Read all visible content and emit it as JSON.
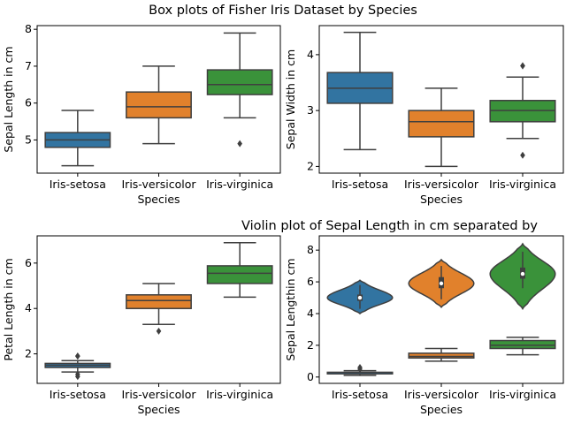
{
  "suptitle": "Box plots of Fisher Iris Dataset by Species",
  "colors": {
    "setosa": "#3274a1",
    "versicolor": "#e1812c",
    "virginica": "#3a923a",
    "line": "#3f3f3f"
  },
  "chart_data": [
    {
      "type": "box",
      "title": "",
      "xlabel": "Species",
      "ylabel": "Sepal Length in cm",
      "categories": [
        "Iris-setosa",
        "Iris-versicolor",
        "Iris-virginica"
      ],
      "ylim": [
        4.1,
        8.1
      ],
      "yticks": [
        5,
        6,
        7,
        8
      ],
      "boxes": [
        {
          "q1": 4.8,
          "median": 5.0,
          "q3": 5.2,
          "low": 4.3,
          "high": 5.8,
          "outliers": []
        },
        {
          "q1": 5.6,
          "median": 5.9,
          "q3": 6.3,
          "low": 4.9,
          "high": 7.0,
          "outliers": []
        },
        {
          "q1": 6.23,
          "median": 6.5,
          "q3": 6.9,
          "low": 5.6,
          "high": 7.9,
          "outliers": [
            4.9
          ]
        }
      ]
    },
    {
      "type": "box",
      "title": "",
      "xlabel": "Species",
      "ylabel": "Sepal Width in cm",
      "categories": [
        "Iris-setosa",
        "Iris-versicolor",
        "Iris-virginica"
      ],
      "ylim": [
        1.88,
        4.52
      ],
      "yticks": [
        2,
        3,
        4
      ],
      "boxes": [
        {
          "q1": 3.13,
          "median": 3.4,
          "q3": 3.68,
          "low": 2.3,
          "high": 4.4,
          "outliers": []
        },
        {
          "q1": 2.53,
          "median": 2.8,
          "q3": 3.0,
          "low": 2.0,
          "high": 3.4,
          "outliers": []
        },
        {
          "q1": 2.8,
          "median": 3.0,
          "q3": 3.18,
          "low": 2.5,
          "high": 3.6,
          "outliers": [
            3.8,
            3.8,
            2.2
          ]
        }
      ]
    },
    {
      "type": "box",
      "title": "",
      "xlabel": "Species",
      "ylabel": "Petal Length in cm",
      "categories": [
        "Iris-setosa",
        "Iris-versicolor",
        "Iris-virginica"
      ],
      "ylim": [
        0.7,
        7.2
      ],
      "yticks": [
        2,
        4,
        6
      ],
      "boxes": [
        {
          "q1": 1.4,
          "median": 1.5,
          "q3": 1.58,
          "low": 1.2,
          "high": 1.7,
          "outliers": [
            1.9,
            1.9,
            1.1,
            1.0
          ]
        },
        {
          "q1": 4.0,
          "median": 4.35,
          "q3": 4.6,
          "low": 3.3,
          "high": 5.1,
          "outliers": [
            3.0
          ]
        },
        {
          "q1": 5.1,
          "median": 5.55,
          "q3": 5.88,
          "low": 4.5,
          "high": 6.9,
          "outliers": []
        }
      ]
    },
    {
      "type": "violin+box",
      "title": "Violin plot of Sepal Length in cm separated by",
      "xlabel": "Species",
      "ylabel": "Sepal Lengthin cm",
      "categories": [
        "Iris-setosa",
        "Iris-versicolor",
        "Iris-virginica"
      ],
      "ylim": [
        -0.4,
        8.9
      ],
      "yticks": [
        0,
        2,
        4,
        6,
        8
      ],
      "violins": [
        {
          "min": 4.0,
          "max": 6.1,
          "peak": 5.0,
          "q1": 4.8,
          "median": 5.0,
          "q3": 5.2,
          "low": 4.3,
          "high": 5.8
        },
        {
          "min": 4.4,
          "max": 7.4,
          "peak": 5.9,
          "q1": 5.6,
          "median": 5.9,
          "q3": 6.3,
          "low": 4.9,
          "high": 7.0
        },
        {
          "min": 4.3,
          "max": 8.4,
          "peak": 6.5,
          "q1": 6.2,
          "median": 6.5,
          "q3": 6.9,
          "low": 5.6,
          "high": 7.9
        }
      ],
      "boxes": [
        {
          "q1": 0.2,
          "median": 0.2,
          "q3": 0.3,
          "low": 0.1,
          "high": 0.4,
          "outliers": [
            0.5,
            0.6
          ]
        },
        {
          "q1": 1.2,
          "median": 1.3,
          "q3": 1.5,
          "low": 1.0,
          "high": 1.8,
          "outliers": []
        },
        {
          "q1": 1.8,
          "median": 2.0,
          "q3": 2.3,
          "low": 1.4,
          "high": 2.5,
          "outliers": []
        }
      ]
    }
  ]
}
